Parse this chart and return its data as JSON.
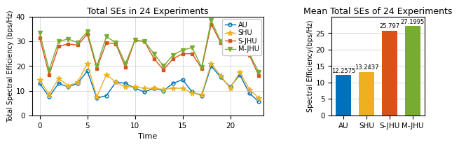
{
  "line_title": "Total SEs in 24 Experiments",
  "bar_title": "Mean Total SEs of 24 Experiments",
  "line_xlabel": "Time",
  "line_ylabel": "Total Spectral Efficiency (bps/Hz)",
  "bar_ylabel": "Spectral Efficiency(bps/Hz)",
  "time": [
    0,
    1,
    2,
    3,
    4,
    5,
    6,
    7,
    8,
    9,
    10,
    11,
    12,
    13,
    14,
    15,
    16,
    17,
    18,
    19,
    20,
    21,
    22,
    23
  ],
  "AU": [
    13,
    7.5,
    13,
    11.5,
    13,
    18,
    7,
    8,
    13.5,
    13,
    11,
    9.5,
    11,
    10,
    13,
    14.5,
    9.5,
    8,
    20,
    15.5,
    11.5,
    16.5,
    9,
    5.5
  ],
  "SHU": [
    14.5,
    8.5,
    15,
    12,
    13.5,
    21,
    7.5,
    16.5,
    13.5,
    11.5,
    11.5,
    11,
    11,
    10.5,
    11,
    11,
    9,
    8.5,
    21,
    16,
    11,
    17.5,
    10.5,
    7
  ],
  "S_JHU": [
    31.5,
    16.5,
    28,
    29,
    28.5,
    33,
    19,
    29.5,
    29,
    19.5,
    30.5,
    30,
    23,
    18.5,
    23,
    25,
    25,
    19,
    37,
    29.5,
    25,
    32,
    24.5,
    16
  ],
  "M_JHU": [
    33.5,
    18.5,
    30,
    31,
    29.5,
    34,
    20,
    32,
    29.5,
    21,
    30.5,
    30,
    25,
    20,
    24.5,
    26.5,
    27.5,
    19.5,
    38.5,
    30,
    26,
    35.5,
    25,
    17.5
  ],
  "AU_color": "#0072BD",
  "SHU_color": "#EDB120",
  "S_JHU_color": "#D95319",
  "M_JHU_color": "#77AC30",
  "bar_values": [
    12.2575,
    13.2437,
    25.797,
    27.1995
  ],
  "bar_labels": [
    "AU",
    "SHU",
    "S-JHU",
    "M-JHU"
  ],
  "bar_colors": [
    "#0072BD",
    "#EDB120",
    "#D95319",
    "#77AC30"
  ],
  "ylim_line": [
    0,
    40
  ],
  "ylim_bar": [
    0,
    30
  ],
  "line_yticks": [
    0,
    10,
    20,
    30,
    40
  ],
  "line_xticks": [
    0,
    5,
    10,
    15,
    20
  ],
  "bar_yticks": [
    0,
    5,
    10,
    15,
    20,
    25
  ]
}
